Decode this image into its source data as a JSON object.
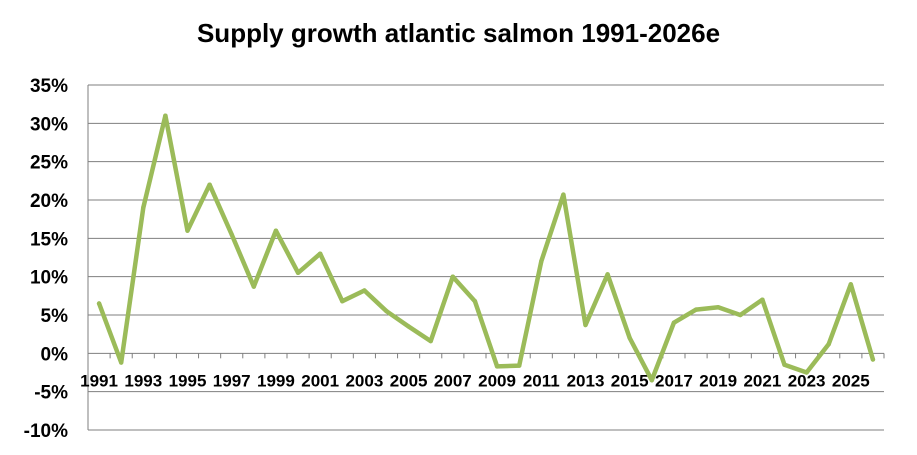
{
  "chart_data": {
    "type": "line",
    "title": "Supply growth atlantic salmon 1991-2026e",
    "xlabel": "",
    "ylabel": "",
    "x": [
      1991,
      1992,
      1993,
      1994,
      1995,
      1996,
      1997,
      1998,
      1999,
      2000,
      2001,
      2002,
      2003,
      2004,
      2005,
      2006,
      2007,
      2008,
      2009,
      2010,
      2011,
      2012,
      2013,
      2014,
      2015,
      2016,
      2017,
      2018,
      2019,
      2020,
      2021,
      2022,
      2023,
      2024,
      2025,
      2026
    ],
    "x_tick_labels": [
      "1991",
      "1993",
      "1995",
      "1997",
      "1999",
      "2001",
      "2003",
      "2005",
      "2007",
      "2009",
      "2011",
      "2013",
      "2015",
      "2017",
      "2019",
      "2021",
      "2023",
      "2025"
    ],
    "series": [
      {
        "values": [
          6.5,
          -1.2,
          19.0,
          31.0,
          16.0,
          22.0,
          15.5,
          8.7,
          16.0,
          10.5,
          13.0,
          6.8,
          8.2,
          5.5,
          3.5,
          1.6,
          10.0,
          6.8,
          -1.7,
          -1.6,
          12.0,
          20.7,
          3.7,
          10.3,
          2.0,
          -3.5,
          4.0,
          5.7,
          6.0,
          5.0,
          7.0,
          -1.5,
          -2.5,
          1.2,
          9.0,
          -0.8
        ],
        "color": "#9bbb59"
      }
    ],
    "y_tick_labels": [
      "35%",
      "30%",
      "25%",
      "20%",
      "15%",
      "10%",
      "5%",
      "0%",
      "-5%",
      "-10%"
    ],
    "ylim": [
      -10,
      35
    ],
    "y_step": 5,
    "grid": true,
    "legend": "none",
    "gridline_color": "#7f7f7f",
    "axis_color": "#7f7f7f"
  }
}
